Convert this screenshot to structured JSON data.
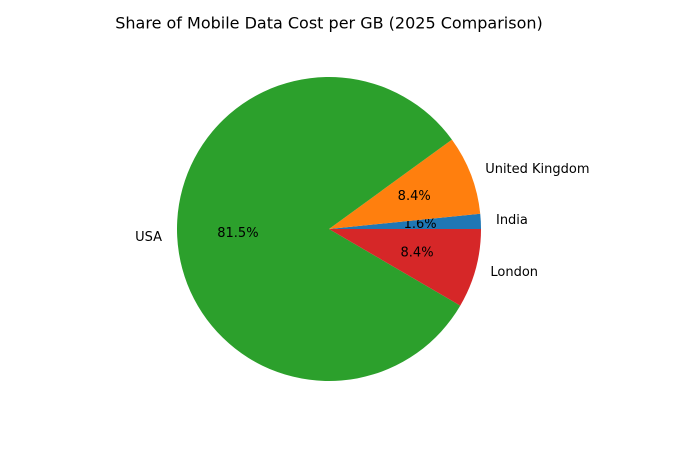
{
  "chart_data": {
    "type": "pie",
    "title": "Share of Mobile Data Cost per GB (2025 Comparison)",
    "categories": [
      "India",
      "United Kingdom",
      "USA",
      "London"
    ],
    "values": [
      1.6,
      8.4,
      81.5,
      8.4
    ],
    "value_labels": [
      "1.6%",
      "8.4%",
      "81.5%",
      "8.4%"
    ],
    "colors": [
      "#1f77b4",
      "#ff7f0e",
      "#2ca02c",
      "#d62728"
    ]
  }
}
